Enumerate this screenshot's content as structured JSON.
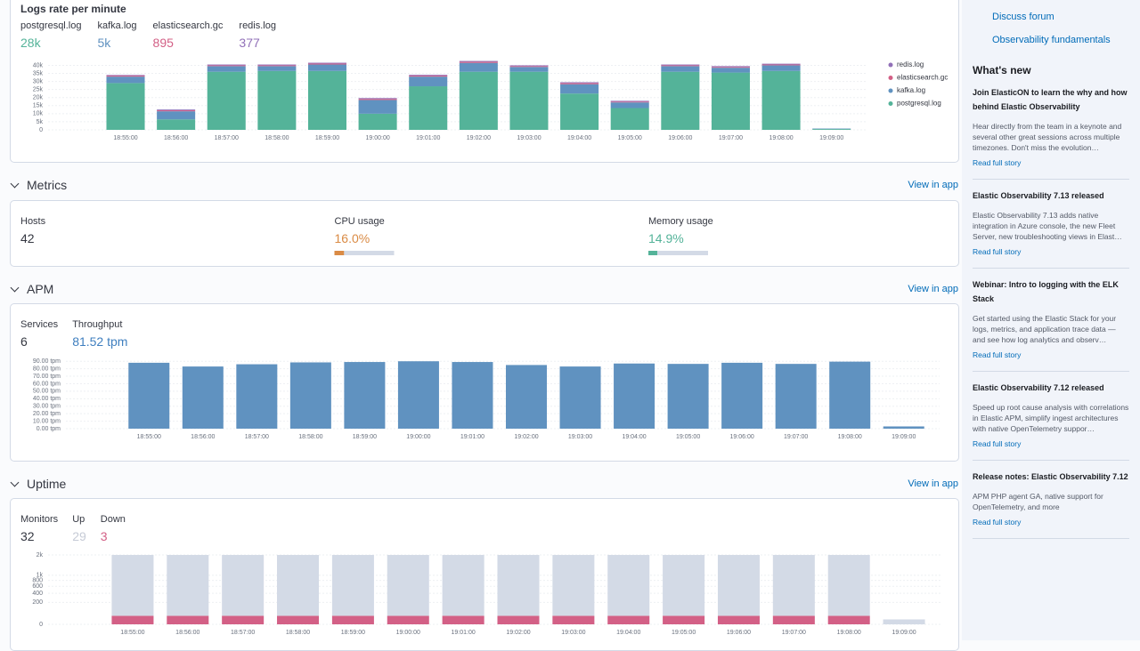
{
  "logs": {
    "title": "Logs rate per minute",
    "stats": [
      {
        "label": "postgresql.log",
        "value": "28k",
        "color": "#54b399"
      },
      {
        "label": "kafka.log",
        "value": "5k",
        "color": "#6092c0"
      },
      {
        "label": "elasticsearch.gc",
        "value": "895",
        "color": "#d36086"
      },
      {
        "label": "redis.log",
        "value": "377",
        "color": "#9170b8"
      }
    ]
  },
  "metrics": {
    "title": "Metrics",
    "link": "View in app",
    "progress_range": [
      0,
      100
    ],
    "stats": [
      {
        "label": "Hosts",
        "value": "42"
      },
      {
        "label": "CPU usage",
        "value": 16.0,
        "value_label": "16.0%",
        "color": "#da8b45"
      },
      {
        "label": "Memory usage",
        "value": 14.9,
        "value_label": "14.9%",
        "color": "#54b399"
      }
    ]
  },
  "apm": {
    "title": "APM",
    "link": "View in app",
    "stats": [
      {
        "label": "Services",
        "value": "6",
        "color": "#343741"
      },
      {
        "label": "Throughput",
        "value": "81.52 tpm",
        "color": "#3f7fbf"
      }
    ]
  },
  "uptime": {
    "title": "Uptime",
    "link": "View in app",
    "stats": [
      {
        "label": "Monitors",
        "value": "32",
        "color": "#343741"
      },
      {
        "label": "Up",
        "value": "29",
        "color": "#c6cbd6"
      },
      {
        "label": "Down",
        "value": "3",
        "color": "#d36086"
      }
    ]
  },
  "sidebar": {
    "links": [
      "Discuss forum",
      "Observability fundamentals"
    ],
    "whats_new": "What's new",
    "news": [
      {
        "title": "Join ElasticON to learn the why and how behind Elastic Observability",
        "text": "Hear directly from the team in a keynote and several other great sessions across multiple timezones. Don't miss the evolution…",
        "link": "Read full story"
      },
      {
        "title": "Elastic Observability 7.13 released",
        "text": "Elastic Observability 7.13 adds native integration in Azure console, the new Fleet Server, new troubleshooting views in Elast…",
        "link": "Read full story"
      },
      {
        "title": "Webinar: Intro to logging with the ELK Stack",
        "text": "Get started using the Elastic Stack for your logs, metrics, and application trace data — and see how log analytics and observ…",
        "link": "Read full story"
      },
      {
        "title": "Elastic Observability 7.12 released",
        "text": "Speed up root cause analysis with correlations in Elastic APM, simplify ingest architectures with native OpenTelemetry suppor…",
        "link": "Read full story"
      },
      {
        "title": "Release notes: Elastic Observability 7.12",
        "text": "APM PHP agent GA, native support for OpenTelemetry, and more",
        "link": "Read full story"
      }
    ]
  },
  "chart_data": [
    {
      "type": "bar",
      "stacked": true,
      "grid": true,
      "legend": "right",
      "categories": [
        "18:55:00",
        "18:56:00",
        "18:57:00",
        "18:58:00",
        "18:59:00",
        "19:00:00",
        "19:01:00",
        "19:02:00",
        "19:03:00",
        "19:04:00",
        "19:05:00",
        "19:06:00",
        "19:07:00",
        "19:08:00",
        "19:09:00"
      ],
      "series": [
        {
          "name": "postgresql.log",
          "color": "#54b399",
          "values": [
            29000,
            6500,
            36000,
            36500,
            36500,
            10000,
            27000,
            36000,
            36000,
            22500,
            13500,
            36000,
            35500,
            36500,
            500
          ]
        },
        {
          "name": "kafka.log",
          "color": "#6092c0",
          "values": [
            4000,
            5000,
            3500,
            3000,
            4000,
            8500,
            6000,
            5500,
            3000,
            5800,
            3500,
            3500,
            3000,
            3500,
            300
          ]
        },
        {
          "name": "elasticsearch.gc",
          "color": "#d36086",
          "values": [
            600,
            600,
            500,
            500,
            600,
            700,
            600,
            700,
            500,
            700,
            500,
            500,
            500,
            500,
            0
          ]
        },
        {
          "name": "redis.log",
          "color": "#9170b8",
          "values": [
            400,
            500,
            500,
            500,
            500,
            500,
            500,
            500,
            500,
            500,
            500,
            500,
            500,
            500,
            0
          ]
        }
      ],
      "ylim": [
        0,
        43000
      ],
      "yticks": [
        0,
        {
          "value": 5000,
          "label": "5k"
        },
        {
          "value": 10000,
          "label": "10k"
        },
        {
          "value": 15000,
          "label": "15k"
        },
        {
          "value": 20000,
          "label": "20k"
        },
        {
          "value": 25000,
          "label": "25k"
        },
        {
          "value": 30000,
          "label": "30k"
        },
        {
          "value": 35000,
          "label": "35k"
        },
        {
          "value": 40000,
          "label": "40k"
        }
      ]
    },
    {
      "type": "bar",
      "grid": true,
      "color": "#6092c0",
      "categories": [
        "18:55:00",
        "18:56:00",
        "18:57:00",
        "18:58:00",
        "18:59:00",
        "19:00:00",
        "19:01:00",
        "19:02:00",
        "19:03:00",
        "19:04:00",
        "19:05:00",
        "19:06:00",
        "19:07:00",
        "19:08:00",
        "19:09:00"
      ],
      "values": [
        88,
        83,
        86,
        88.5,
        89,
        90,
        89,
        85,
        83,
        87,
        86.5,
        88,
        86.5,
        89.5,
        3
      ],
      "ylim": [
        0,
        95
      ],
      "yticks": [
        {
          "value": 0,
          "label": "0.00 tpm"
        },
        {
          "value": 10,
          "label": "10.00 tpm"
        },
        {
          "value": 20,
          "label": "20.00 tpm"
        },
        {
          "value": 30,
          "label": "30.00 tpm"
        },
        {
          "value": 40,
          "label": "40.00 tpm"
        },
        {
          "value": 50,
          "label": "50.00 tpm"
        },
        {
          "value": 60,
          "label": "60.00 tpm"
        },
        {
          "value": 70,
          "label": "70.00 tpm"
        },
        {
          "value": 80,
          "label": "80.00 tpm"
        },
        {
          "value": 90,
          "label": "90.00 tpm"
        }
      ]
    },
    {
      "type": "bar",
      "stacked": true,
      "grid": true,
      "scale": "sqrt",
      "categories": [
        "18:55:00",
        "18:56:00",
        "18:57:00",
        "18:58:00",
        "18:59:00",
        "19:00:00",
        "19:01:00",
        "19:02:00",
        "19:03:00",
        "19:04:00",
        "19:05:00",
        "19:06:00",
        "19:07:00",
        "19:08:00",
        "19:09:00"
      ],
      "series": [
        {
          "color": "#d36086",
          "values": [
            30,
            30,
            30,
            30,
            30,
            30,
            30,
            30,
            30,
            30,
            30,
            30,
            30,
            30,
            0
          ]
        },
        {
          "color": "#d3dae6",
          "values": [
            1970,
            1970,
            1970,
            1970,
            1970,
            1970,
            1970,
            1970,
            1970,
            1970,
            1970,
            1970,
            1970,
            1970,
            10
          ]
        }
      ],
      "ylim": [
        0,
        2000
      ],
      "yticks": [
        0,
        200,
        400,
        600,
        800,
        {
          "value": 1000,
          "label": "1k"
        },
        {
          "value": 2000,
          "label": "2k"
        }
      ]
    }
  ]
}
